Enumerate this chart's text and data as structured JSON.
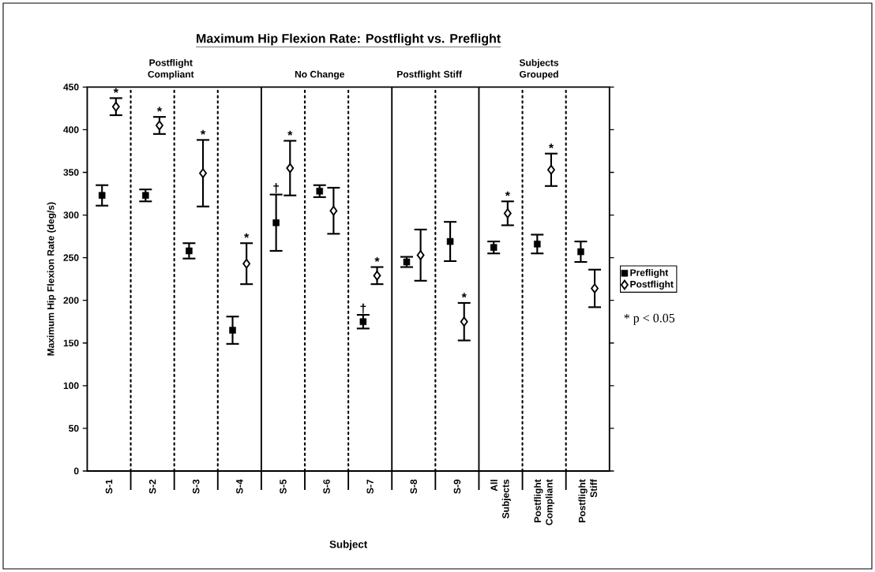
{
  "chart_data": {
    "type": "scatter",
    "title": "Maximum Hip Flexion Rate: Postflight vs. Preflight",
    "xlabel": "Subject",
    "ylabel": "Maximum Hip Flexion Rate (deg/s)",
    "categories": [
      "S-1",
      "S-2",
      "S-3",
      "S-4",
      "S-5",
      "S-6",
      "S-7",
      "S-8",
      "S-9",
      "All Subjects",
      "Postflight Compliant",
      "Postflight Stiff"
    ],
    "series": [
      {
        "name": "Preflight",
        "color": "#000000",
        "marker": "square",
        "values": [
          323,
          323,
          258,
          165,
          291,
          328,
          175,
          245,
          269,
          262,
          266,
          257
        ],
        "errors": [
          12,
          7,
          9,
          16,
          33,
          7,
          8,
          6,
          23,
          7,
          11,
          12
        ]
      },
      {
        "name": "Postflight",
        "color": "#000000",
        "marker": "diamond",
        "values": [
          427,
          405,
          349,
          243,
          355,
          305,
          229,
          253,
          175,
          302,
          353,
          214
        ],
        "errors": [
          10,
          10,
          39,
          24,
          32,
          27,
          10,
          30,
          22,
          14,
          19,
          22
        ]
      }
    ],
    "ylim": [
      0,
      450
    ],
    "yticks": [
      0,
      50,
      100,
      150,
      200,
      250,
      300,
      350,
      400,
      450
    ],
    "legend": "right",
    "grid": false,
    "annotations": [
      "Postflight Compliant",
      "No Change",
      "Postflight Stiff",
      "Subjects Grouped",
      "* p < 0.05",
      {
        "text": "*",
        "x": "S-1",
        "y": 437
      },
      {
        "text": "*",
        "x": "S-2",
        "y": 415
      },
      {
        "text": "*",
        "x": "S-3",
        "y": 388
      },
      {
        "text": "*",
        "x": "S-4",
        "y": 267
      },
      {
        "text": "†",
        "x": "S-5",
        "y": 324
      },
      {
        "text": "*",
        "x": "S-5",
        "y": 387
      },
      {
        "text": "†",
        "x": "S-7",
        "y": 183
      },
      {
        "text": "*",
        "x": "S-7",
        "y": 239
      },
      {
        "text": "*",
        "x": "S-9",
        "y": 197
      },
      {
        "text": "*",
        "x": "All Subjects",
        "y": 316
      },
      {
        "text": "*",
        "x": "Postflight Compliant",
        "y": 372
      }
    ]
  }
}
